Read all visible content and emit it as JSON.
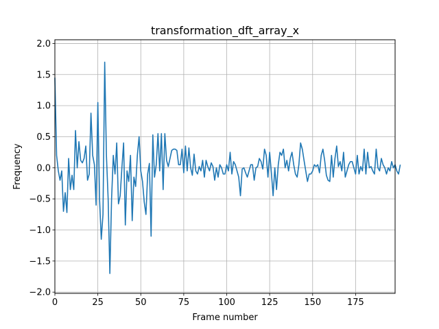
{
  "chart_data": {
    "type": "line",
    "title": "transformation_dft_array_x",
    "xlabel": "Frame number",
    "ylabel": "Frequency",
    "xlim": [
      0,
      198
    ],
    "ylim": [
      -2.02,
      2.06
    ],
    "grid": true,
    "x_ticks": [
      0,
      25,
      50,
      75,
      100,
      125,
      150,
      175
    ],
    "y_ticks": [
      -2.0,
      -1.5,
      -1.0,
      -0.5,
      0.0,
      0.5,
      1.0,
      1.5,
      2.0
    ],
    "x_tick_labels": [
      "0",
      "25",
      "50",
      "75",
      "100",
      "125",
      "150",
      "175"
    ],
    "y_tick_labels": [
      "−2.0",
      "−1.5",
      "−1.0",
      "−0.5",
      "0.0",
      "0.5",
      "1.0",
      "1.5",
      "2.0"
    ],
    "line_color": "#1f77b4",
    "series": [
      {
        "values": [
          1.45,
          0.2,
          -0.05,
          -0.2,
          -0.05,
          -0.7,
          -0.4,
          -0.72,
          0.15,
          -0.35,
          -0.12,
          -0.35,
          0.6,
          0.0,
          0.42,
          0.12,
          0.08,
          0.15,
          0.35,
          -0.2,
          -0.1,
          0.88,
          0.2,
          0.05,
          -0.6,
          1.05,
          -0.5,
          -1.15,
          -0.75,
          1.7,
          0.2,
          -0.5,
          -1.7,
          -0.5,
          0.2,
          -0.1,
          0.4,
          -0.58,
          -0.45,
          0.0,
          0.4,
          -0.92,
          -0.05,
          -0.22,
          0.2,
          -0.85,
          -0.15,
          -0.3,
          0.2,
          0.5,
          -0.05,
          -0.22,
          -0.55,
          -0.75,
          -0.1,
          0.07,
          -1.1,
          0.53,
          -0.15,
          0.05,
          0.55,
          -0.05,
          0.55,
          -0.35,
          0.55,
          0.12,
          0.02,
          0.15,
          0.28,
          0.3,
          0.3,
          0.28,
          0.05,
          0.05,
          0.3,
          -0.08,
          0.35,
          -0.05,
          0.32,
          0.0,
          -0.12,
          0.22,
          -0.05,
          -0.1,
          0.02,
          -0.05,
          0.12,
          -0.15,
          0.12,
          0.02,
          -0.05,
          0.08,
          0.02,
          -0.2,
          0.0,
          -0.15,
          0.05,
          0.0,
          -0.1,
          -0.1,
          0.05,
          -0.05,
          0.25,
          -0.1,
          0.1,
          0.05,
          -0.05,
          -0.15,
          -0.45,
          -0.02,
          0.0,
          -0.08,
          -0.15,
          -0.05,
          0.05,
          0.05,
          -0.2,
          0.0,
          0.02,
          0.15,
          0.1,
          -0.02,
          0.3,
          0.2,
          -0.15,
          0.25,
          -0.08,
          -0.45,
          0.0,
          -0.35,
          0.05,
          0.25,
          0.2,
          0.3,
          0.0,
          0.12,
          -0.05,
          0.15,
          0.25,
          0.05,
          -0.1,
          -0.15,
          0.05,
          0.4,
          0.3,
          0.12,
          -0.05,
          -0.22,
          -0.1,
          -0.1,
          -0.05,
          0.05,
          0.02,
          0.05,
          -0.08,
          0.2,
          0.3,
          0.12,
          -0.12,
          -0.2,
          -0.22,
          0.2,
          -0.15,
          0.15,
          0.35,
          0.02,
          0.1,
          -0.05,
          0.25,
          -0.15,
          -0.05,
          0.05,
          0.1,
          0.1,
          0.0,
          -0.1,
          0.2,
          -0.1,
          0.02,
          -0.05,
          0.3,
          -0.1,
          0.25,
          0.0,
          0.02,
          -0.05,
          -0.1,
          0.3,
          0.0,
          -0.05,
          0.15,
          0.05,
          0.0,
          -0.1,
          0.0,
          -0.05,
          0.1,
          0.0,
          0.05,
          -0.05,
          -0.1,
          0.05
        ]
      }
    ]
  }
}
